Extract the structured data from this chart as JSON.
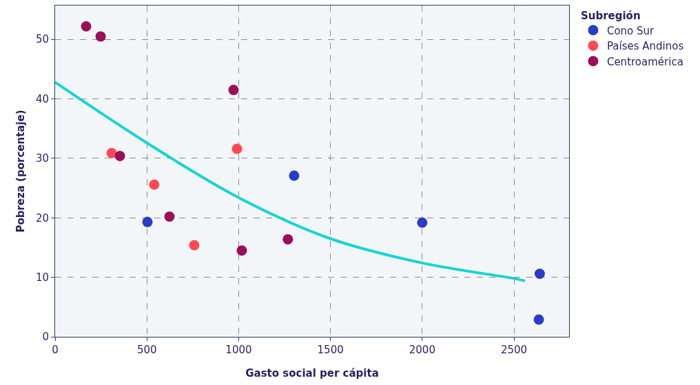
{
  "chart_data": {
    "type": "scatter",
    "xlabel": "Gasto social per cápita",
    "ylabel": "Pobreza (porcentaje)",
    "legend_title": "Subregión",
    "legend": "top right",
    "grid": true,
    "xlim": [
      0,
      2800
    ],
    "xticks": [
      0,
      500,
      1000,
      1500,
      2000,
      2500
    ],
    "ylim": [
      0,
      55.7
    ],
    "yticks": [
      0,
      10,
      20,
      30,
      40,
      50
    ],
    "series": [
      {
        "name": "Cono Sur",
        "color": "#2a3bc4",
        "marker": "circle",
        "x": [
          503,
          1302,
          2000,
          2640,
          2635
        ],
        "values": [
          19.3,
          27.1,
          19.2,
          10.6,
          2.9
        ]
      },
      {
        "name": "Países Andinos",
        "color": "#ff4a55",
        "marker": "circle",
        "x": [
          308,
          540,
          758,
          991
        ],
        "values": [
          30.9,
          25.6,
          15.4,
          31.6
        ]
      },
      {
        "name": "Centroamérica",
        "color": "#9b0e5a",
        "marker": "circle",
        "x": [
          169,
          248,
          353,
          623,
          972,
          1017,
          1268
        ],
        "values": [
          52.2,
          50.5,
          30.4,
          20.2,
          41.5,
          14.5,
          16.4
        ]
      },
      {
        "type": "line",
        "color": "#19d3d3",
        "marker": "none",
        "line_style": "solid",
        "x": [
          0,
          500,
          1000,
          1500,
          2000,
          2500,
          2560
        ],
        "values": [
          42.8,
          32.6,
          23.4,
          16.5,
          12.4,
          9.8,
          9.4
        ]
      }
    ]
  }
}
